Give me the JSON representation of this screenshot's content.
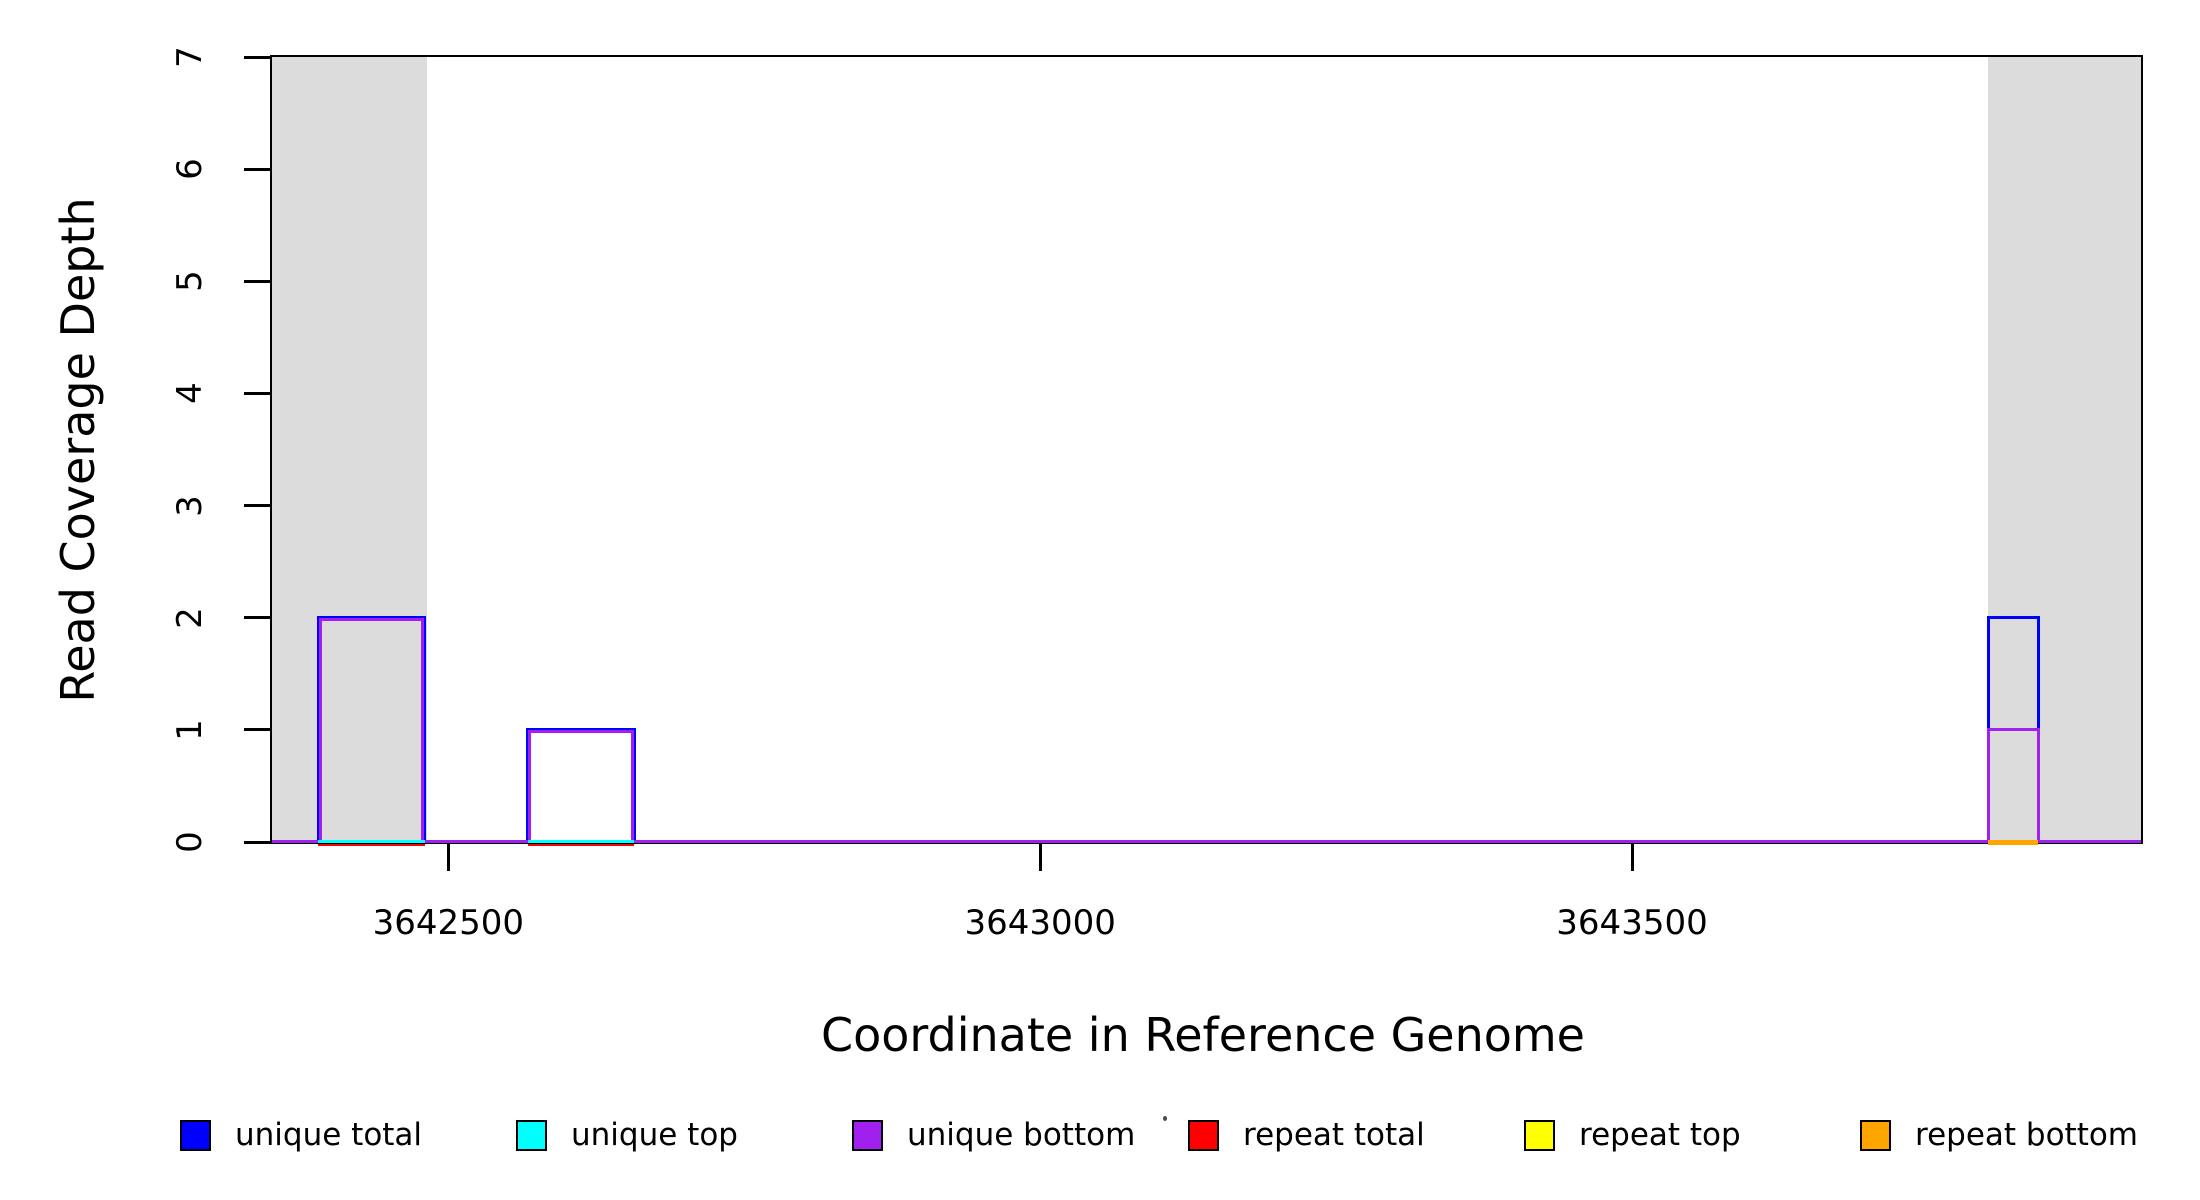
{
  "figure": {
    "background_color": "#FFFFFF",
    "shaded_band_color": "#DCDCDC",
    "axis_color": "#000000"
  },
  "axes": {
    "x": {
      "label": "Coordinate in Reference Genome",
      "ticks": [
        3642500,
        3643000,
        3643500
      ],
      "range": [
        3642351,
        3643930
      ]
    },
    "y": {
      "label": "Read Coverage Depth",
      "ticks": [
        0,
        1,
        2,
        3,
        4,
        5,
        6,
        7
      ],
      "range": [
        0,
        7
      ]
    }
  },
  "legend": [
    {
      "label": "unique total",
      "color": "#0000FF"
    },
    {
      "label": "unique top",
      "color": "#00FFFF"
    },
    {
      "label": "unique bottom",
      "color": "#A020F0"
    },
    {
      "label": "repeat total",
      "color": "#FF0000"
    },
    {
      "label": "repeat top",
      "color": "#FFFF00"
    },
    {
      "label": "repeat bottom",
      "color": "#FFA500"
    }
  ],
  "chart_data": {
    "type": "line",
    "subtype": "step-coverage-outline",
    "title": "",
    "xlabel": "Coordinate in Reference Genome",
    "ylabel": "Read Coverage Depth",
    "xlim": [
      3642351,
      3643930
    ],
    "ylim": [
      0,
      7
    ],
    "x_ticks": [
      3642500,
      3643000,
      3643500
    ],
    "y_ticks": [
      0,
      1,
      2,
      3,
      4,
      5,
      6,
      7
    ],
    "grid": false,
    "legend_position": "bottom",
    "shaded_regions": [
      {
        "start": 3642351,
        "end": 3642482,
        "color": "#DCDCDC",
        "meaning": "repeat region"
      },
      {
        "start": 3643801,
        "end": 3643930,
        "color": "#DCDCDC",
        "meaning": "repeat region"
      }
    ],
    "series": [
      {
        "name": "unique total",
        "color": "#0000FF",
        "baseline_depth": 0,
        "segments": [
          {
            "start": 3642390,
            "end": 3642480,
            "depth": 2
          },
          {
            "start": 3642567,
            "end": 3642657,
            "depth": 1
          },
          {
            "start": 3643801,
            "end": 3643843,
            "depth": 2
          }
        ]
      },
      {
        "name": "unique top",
        "color": "#00FFFF",
        "baseline_depth": 0,
        "segments": []
      },
      {
        "name": "unique bottom",
        "color": "#A020F0",
        "baseline_depth": 0,
        "segments": [
          {
            "start": 3642390,
            "end": 3642480,
            "depth": 2
          },
          {
            "start": 3642567,
            "end": 3642657,
            "depth": 1
          },
          {
            "start": 3643801,
            "end": 3643843,
            "depth": 1
          }
        ]
      },
      {
        "name": "repeat total",
        "color": "#FF0000",
        "baseline_depth": 0,
        "segments": []
      },
      {
        "name": "repeat top",
        "color": "#FFFF00",
        "baseline_depth": 0,
        "segments": []
      },
      {
        "name": "repeat bottom",
        "color": "#FFA500",
        "baseline_depth": 0,
        "segments": []
      }
    ],
    "baseline_marks": [
      {
        "start": 3642390,
        "end": 3642480,
        "color": "#00FFFF"
      },
      {
        "start": 3642567,
        "end": 3642657,
        "color": "#00FFFF"
      },
      {
        "start": 3643801,
        "end": 3643843,
        "color": "#FFA500"
      }
    ],
    "baseline_under_marks": [
      {
        "start": 3642390,
        "end": 3642480,
        "color": "#FF0000"
      },
      {
        "start": 3642567,
        "end": 3642657,
        "color": "#FF0000"
      }
    ]
  }
}
